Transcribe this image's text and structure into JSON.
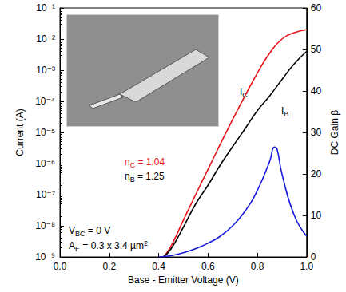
{
  "chart_data": {
    "type": "line",
    "log": "y",
    "grid": false,
    "xlabel": "Base - Emitter Voltage (V)",
    "ylabel": "Current (A)",
    "y2label": "DC Gain β",
    "xlim": [
      0,
      1
    ],
    "xticks": [
      {
        "value": 0,
        "label": "0.0"
      },
      0.2,
      0.4,
      0.6,
      0.8,
      {
        "value": 1,
        "label": "1.0"
      }
    ],
    "ylim": [
      1e-09,
      0.1
    ],
    "yticks": [
      {
        "value": 1e-09,
        "label": "10⁻⁹"
      },
      {
        "value": 1e-08,
        "label": "10⁻⁸"
      },
      {
        "value": 1e-07,
        "label": "10⁻⁷"
      },
      {
        "value": 1e-06,
        "label": "10⁻⁶"
      },
      {
        "value": 1e-05,
        "label": "10⁻⁵"
      },
      {
        "value": 0.0001,
        "label": "10⁻⁴"
      },
      {
        "value": 0.001,
        "label": "10⁻³"
      },
      {
        "value": 0.01,
        "label": "10⁻²"
      },
      {
        "value": 0.1,
        "label": "10⁻¹"
      }
    ],
    "y2lim": [
      0,
      60
    ],
    "y2ticks": [
      0,
      10,
      20,
      30,
      40,
      50,
      60
    ],
    "series": [
      {
        "label": [
          {
            "t": "I"
          },
          {
            "sub": "C"
          }
        ],
        "color": "#e8141b",
        "line_style": "solid",
        "x": [
          0.42,
          0.45,
          0.5,
          0.55,
          0.6,
          0.65,
          0.7,
          0.75,
          0.8,
          0.85,
          0.9,
          0.95,
          1.0
        ],
        "values": [
          1e-09,
          2.2e-09,
          1.5e-08,
          1e-07,
          6.5e-07,
          4.2e-06,
          2.6e-05,
          0.00015,
          0.0008,
          0.0035,
          0.01,
          0.016,
          0.02
        ]
      },
      {
        "label": [
          {
            "t": "I"
          },
          {
            "sub": "B"
          }
        ],
        "color": "#000000",
        "line_style": "solid",
        "x": [
          0.42,
          0.45,
          0.5,
          0.55,
          0.6,
          0.65,
          0.7,
          0.75,
          0.8,
          0.85,
          0.9,
          0.95,
          1.0
        ],
        "values": [
          1e-09,
          1.8e-09,
          9e-09,
          5e-08,
          2e-07,
          9e-07,
          3.5e-06,
          1.3e-05,
          5e-05,
          0.00015,
          0.0005,
          0.0016,
          0.004
        ]
      },
      {
        "color": "#1a1adc",
        "line_style": "solid",
        "axis": "y2",
        "x": [
          0.4,
          0.45,
          0.5,
          0.55,
          0.6,
          0.65,
          0.7,
          0.75,
          0.8,
          0.85,
          0.87,
          0.88,
          0.9,
          0.95,
          1.0
        ],
        "values": [
          0,
          0.3,
          1,
          2,
          3.3,
          5,
          7.5,
          11,
          16,
          23,
          26.5,
          26,
          20,
          10,
          5
        ]
      }
    ],
    "annotations": [
      {
        "segments": [
          {
            "t": "n"
          },
          {
            "sub": "C"
          },
          {
            "t": " = 1.04"
          }
        ],
        "color": "#e8141b"
      },
      {
        "segments": [
          {
            "t": "n"
          },
          {
            "sub": "B"
          },
          {
            "t": " = 1.25"
          }
        ],
        "color": "#000000"
      },
      {
        "segments": [
          {
            "t": "V"
          },
          {
            "sub": "BC"
          },
          {
            "t": " = 0 V"
          }
        ],
        "color": "#000000"
      },
      {
        "segments": [
          {
            "t": "A"
          },
          {
            "sub": "E"
          },
          {
            "t": " = 0.3 x 3.4 µm"
          },
          {
            "sup": "2"
          }
        ],
        "color": "#000000"
      }
    ]
  }
}
